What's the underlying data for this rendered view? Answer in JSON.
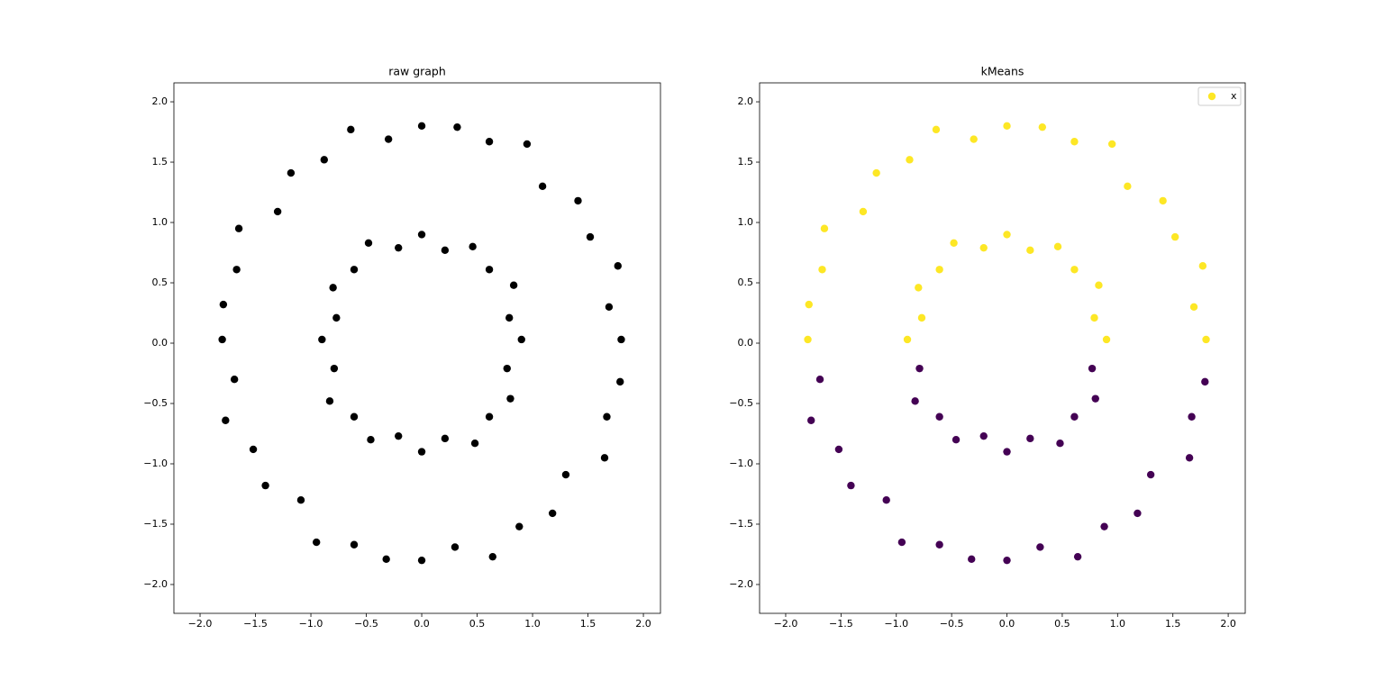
{
  "chart_data": [
    {
      "type": "scatter",
      "title": "raw graph",
      "xlim": [
        -2.236,
        2.154
      ],
      "ylim": [
        -2.239,
        2.157
      ],
      "xticks": [
        {
          "value": -2.0,
          "label": "−2.0"
        },
        {
          "value": -1.5,
          "label": "−1.5"
        },
        {
          "value": -1.0,
          "label": "−1.0"
        },
        {
          "value": -0.5,
          "label": "−0.5"
        },
        {
          "value": 0,
          "label": "0.0"
        },
        {
          "value": 0.5,
          "label": "0.5"
        },
        {
          "value": 1.0,
          "label": "1.0"
        },
        {
          "value": 1.5,
          "label": "1.5"
        },
        {
          "value": 2.0,
          "label": "2.0"
        }
      ],
      "yticks": [
        {
          "value": -2.0,
          "label": "−2.0"
        },
        {
          "value": -1.5,
          "label": "−1.5"
        },
        {
          "value": -1.0,
          "label": "−1.0"
        },
        {
          "value": -0.5,
          "label": "−0.5"
        },
        {
          "value": 0,
          "label": "0.0"
        },
        {
          "value": 0.5,
          "label": "0.5"
        },
        {
          "value": 1.0,
          "label": "1.0"
        },
        {
          "value": 1.5,
          "label": "1.5"
        },
        {
          "value": 2.0,
          "label": "2.0"
        }
      ],
      "series": [
        {
          "color": "#000000",
          "x": [
            1.8,
            1.69,
            1.77,
            1.52,
            1.41,
            1.09,
            0.95,
            0.61,
            0.32,
            0.0,
            -0.3,
            -0.64,
            -0.88,
            -1.18,
            -1.3,
            -1.65,
            -1.67,
            -1.79,
            -1.8,
            -1.69,
            -1.77,
            -1.52,
            -1.41,
            -1.09,
            -0.95,
            -0.61,
            -0.32,
            0.0,
            0.3,
            0.64,
            0.88,
            1.18,
            1.3,
            1.65,
            1.67,
            1.79,
            0.9,
            0.79,
            0.83,
            0.61,
            0.46,
            0.21,
            0.0,
            -0.21,
            -0.48,
            -0.61,
            -0.8,
            -0.77,
            -0.9,
            -0.79,
            -0.83,
            -0.61,
            -0.46,
            -0.21,
            0.0,
            0.21,
            0.48,
            0.61,
            0.8,
            0.77
          ],
          "y": [
            0.03,
            0.3,
            0.64,
            0.88,
            1.18,
            1.3,
            1.65,
            1.67,
            1.79,
            1.8,
            1.69,
            1.77,
            1.52,
            1.41,
            1.09,
            0.95,
            0.61,
            0.32,
            0.03,
            -0.3,
            -0.64,
            -0.88,
            -1.18,
            -1.3,
            -1.65,
            -1.67,
            -1.79,
            -1.8,
            -1.69,
            -1.77,
            -1.52,
            -1.41,
            -1.09,
            -0.95,
            -0.61,
            -0.32,
            0.03,
            0.21,
            0.48,
            0.61,
            0.8,
            0.77,
            0.9,
            0.79,
            0.83,
            0.61,
            0.46,
            0.21,
            0.03,
            -0.21,
            -0.48,
            -0.61,
            -0.8,
            -0.77,
            -0.9,
            -0.79,
            -0.83,
            -0.61,
            -0.46,
            -0.21
          ]
        }
      ]
    },
    {
      "type": "scatter",
      "title": "kMeans",
      "legend": "upper right",
      "xlim": [
        -2.236,
        2.154
      ],
      "ylim": [
        -2.239,
        2.157
      ],
      "xticks": [
        {
          "value": -2.0,
          "label": "−2.0"
        },
        {
          "value": -1.5,
          "label": "−1.5"
        },
        {
          "value": -1.0,
          "label": "−1.0"
        },
        {
          "value": -0.5,
          "label": "−0.5"
        },
        {
          "value": 0,
          "label": "0.0"
        },
        {
          "value": 0.5,
          "label": "0.5"
        },
        {
          "value": 1.0,
          "label": "1.0"
        },
        {
          "value": 1.5,
          "label": "1.5"
        },
        {
          "value": 2.0,
          "label": "2.0"
        }
      ],
      "yticks": [
        {
          "value": -2.0,
          "label": "−2.0"
        },
        {
          "value": -1.5,
          "label": "−1.5"
        },
        {
          "value": -1.0,
          "label": "−1.0"
        },
        {
          "value": -0.5,
          "label": "−0.5"
        },
        {
          "value": 0,
          "label": "0.0"
        },
        {
          "value": 0.5,
          "label": "0.5"
        },
        {
          "value": 1.0,
          "label": "1.0"
        },
        {
          "value": 1.5,
          "label": "1.5"
        },
        {
          "value": 2.0,
          "label": "2.0"
        }
      ],
      "series": [
        {
          "name": "x",
          "color": "#fde725",
          "x": [
            1.8,
            1.69,
            1.77,
            1.52,
            1.41,
            1.09,
            0.95,
            0.61,
            0.32,
            0.0,
            -0.3,
            -0.64,
            -0.88,
            -1.18,
            -1.3,
            -1.65,
            -1.67,
            -1.79,
            -1.8,
            0.9,
            0.79,
            0.83,
            0.61,
            0.46,
            0.21,
            0.0,
            -0.21,
            -0.48,
            -0.61,
            -0.8,
            -0.77,
            -0.9
          ],
          "y": [
            0.03,
            0.3,
            0.64,
            0.88,
            1.18,
            1.3,
            1.65,
            1.67,
            1.79,
            1.8,
            1.69,
            1.77,
            1.52,
            1.41,
            1.09,
            0.95,
            0.61,
            0.32,
            0.03,
            0.03,
            0.21,
            0.48,
            0.61,
            0.8,
            0.77,
            0.9,
            0.79,
            0.83,
            0.61,
            0.46,
            0.21,
            0.03
          ]
        },
        {
          "color": "#440154",
          "x": [
            -1.69,
            -1.77,
            -1.52,
            -1.41,
            -1.09,
            -0.95,
            -0.61,
            -0.32,
            0.0,
            0.3,
            0.64,
            0.88,
            1.18,
            1.3,
            1.65,
            1.67,
            1.79,
            -0.79,
            -0.83,
            -0.61,
            -0.46,
            -0.21,
            0.0,
            0.21,
            0.48,
            0.61,
            0.8,
            0.77
          ],
          "y": [
            -0.3,
            -0.64,
            -0.88,
            -1.18,
            -1.3,
            -1.65,
            -1.67,
            -1.79,
            -1.8,
            -1.69,
            -1.77,
            -1.52,
            -1.41,
            -1.09,
            -0.95,
            -0.61,
            -0.32,
            -0.21,
            -0.48,
            -0.61,
            -0.8,
            -0.77,
            -0.9,
            -0.79,
            -0.83,
            -0.61,
            -0.46,
            -0.21
          ]
        }
      ]
    }
  ]
}
